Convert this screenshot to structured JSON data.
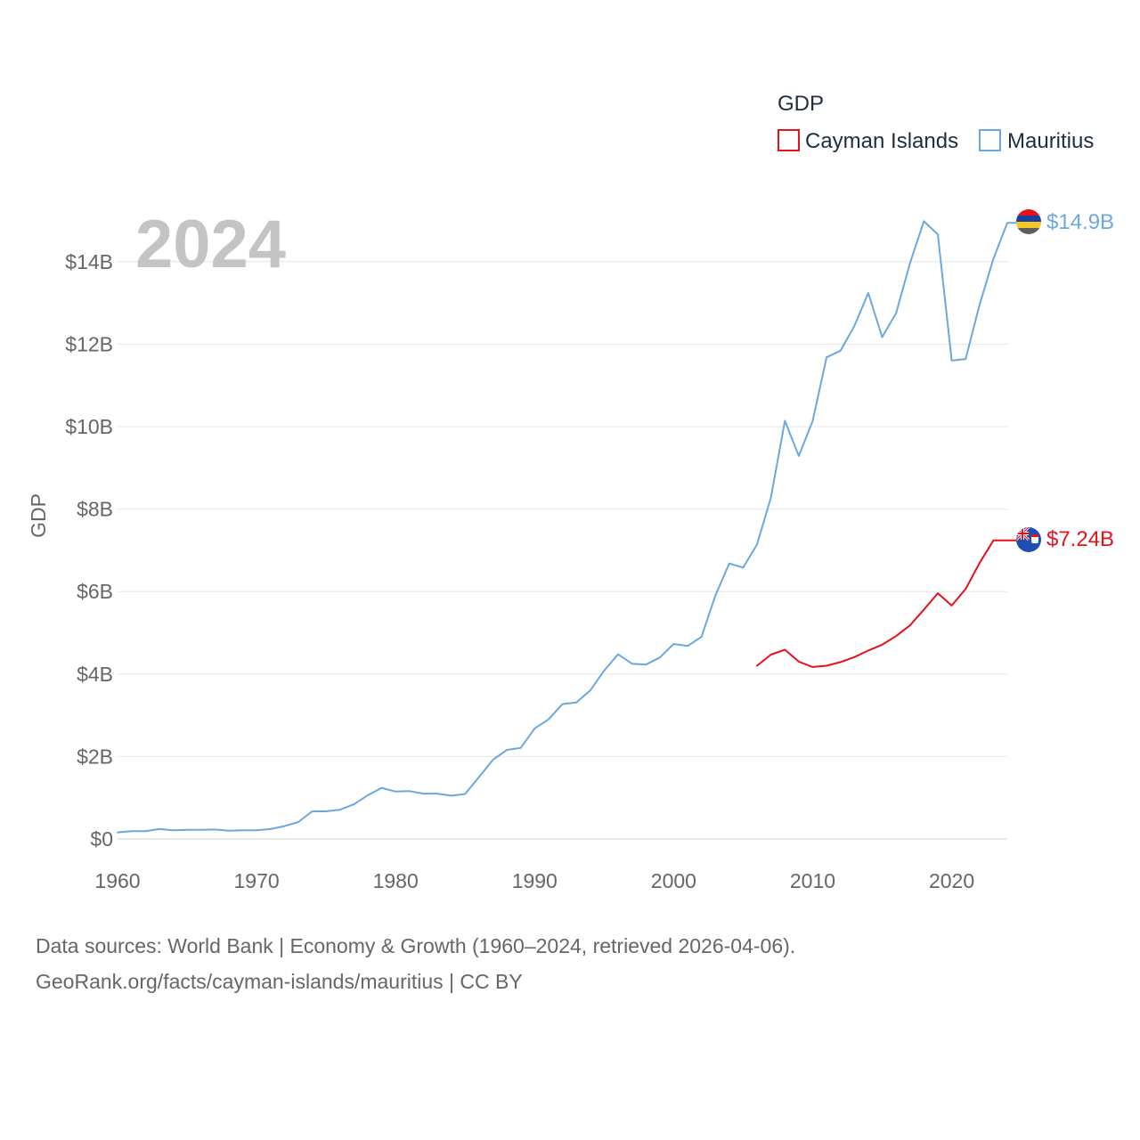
{
  "chart_data": {
    "type": "line",
    "title": "GDP",
    "year_label": "2024",
    "ylabel": "GDP",
    "xlabel": "",
    "xlim": [
      1960,
      2024
    ],
    "ylim": [
      0,
      15.5
    ],
    "x_ticks": [
      1960,
      1970,
      1980,
      1990,
      2000,
      2010,
      2020
    ],
    "y_ticks": [
      0,
      2,
      4,
      6,
      8,
      10,
      12,
      14
    ],
    "y_tick_labels": [
      "$0",
      "$2B",
      "$4B",
      "$6B",
      "$8B",
      "$10B",
      "$12B",
      "$14B"
    ],
    "legend": {
      "title": "GDP",
      "position": "top-right"
    },
    "series": [
      {
        "name": "Cayman Islands",
        "color": "#e8111b",
        "flag": "cayman-islands-flag-icon",
        "end_label": "$7.24B",
        "x": [
          2006,
          2007,
          2008,
          2009,
          2010,
          2011,
          2012,
          2013,
          2014,
          2015,
          2016,
          2017,
          2018,
          2019,
          2020,
          2021,
          2022,
          2023,
          2024
        ],
        "values": [
          4.2,
          4.47,
          4.59,
          4.3,
          4.17,
          4.2,
          4.29,
          4.41,
          4.57,
          4.71,
          4.92,
          5.18,
          5.56,
          5.96,
          5.66,
          6.06,
          6.69,
          7.24,
          7.24
        ]
      },
      {
        "name": "Mauritius",
        "color": "#6aa8e0",
        "flag": "mauritius-flag-icon",
        "end_label": "$14.9B",
        "x": [
          1960,
          1961,
          1962,
          1963,
          1964,
          1965,
          1966,
          1967,
          1968,
          1969,
          1970,
          1971,
          1972,
          1973,
          1974,
          1975,
          1976,
          1977,
          1978,
          1979,
          1980,
          1981,
          1982,
          1983,
          1984,
          1985,
          1986,
          1987,
          1988,
          1989,
          1990,
          1991,
          1992,
          1993,
          1994,
          1995,
          1996,
          1997,
          1998,
          1999,
          2000,
          2001,
          2002,
          2003,
          2004,
          2005,
          2006,
          2007,
          2008,
          2009,
          2010,
          2011,
          2012,
          2013,
          2014,
          2015,
          2016,
          2017,
          2018,
          2019,
          2020,
          2021,
          2022,
          2023,
          2024
        ],
        "values": [
          0.16,
          0.19,
          0.19,
          0.24,
          0.21,
          0.22,
          0.22,
          0.23,
          0.2,
          0.21,
          0.21,
          0.24,
          0.31,
          0.41,
          0.67,
          0.67,
          0.71,
          0.84,
          1.06,
          1.24,
          1.15,
          1.16,
          1.1,
          1.1,
          1.05,
          1.09,
          1.5,
          1.92,
          2.16,
          2.21,
          2.68,
          2.9,
          3.27,
          3.31,
          3.6,
          4.08,
          4.48,
          4.25,
          4.23,
          4.4,
          4.73,
          4.68,
          4.9,
          5.9,
          6.68,
          6.58,
          7.14,
          8.28,
          10.14,
          9.29,
          10.14,
          11.68,
          11.84,
          12.44,
          13.24,
          12.17,
          12.75,
          13.96,
          14.98,
          14.66,
          11.6,
          11.64,
          12.95,
          14.07,
          14.94
        ]
      }
    ]
  },
  "footer": {
    "line1": "Data sources: World Bank | Economy & Growth (1960–2024, retrieved 2026-04-06).",
    "line2": "GeoRank.org/facts/cayman-islands/mauritius | CC BY"
  }
}
